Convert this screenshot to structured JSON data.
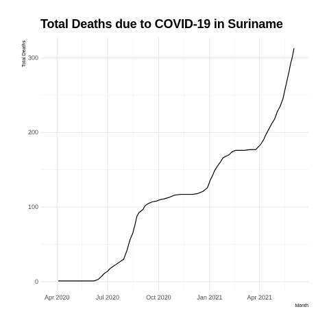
{
  "chart_data": {
    "type": "line",
    "title": "Total Deaths due to COVID-19 in Suriname",
    "xlabel": "Month",
    "ylabel": "Total Deaths",
    "x_ticks": [
      "Apr 2020",
      "Jul 2020",
      "Oct 2020",
      "Jan 2021",
      "Apr 2021"
    ],
    "y_ticks": [
      0,
      100,
      200,
      300
    ],
    "ylim": [
      -12,
      327
    ],
    "xlim": [
      "2020-03-02",
      "2021-06-28"
    ],
    "grid": true,
    "series": [
      {
        "x": [
          "2020-04-03",
          "2020-04-20",
          "2020-05-10",
          "2020-05-25",
          "2020-06-07",
          "2020-06-14",
          "2020-06-20",
          "2020-06-25",
          "2020-07-01",
          "2020-07-06",
          "2020-07-12",
          "2020-07-18",
          "2020-07-24",
          "2020-07-30",
          "2020-08-05",
          "2020-08-10",
          "2020-08-13",
          "2020-08-15",
          "2020-08-19",
          "2020-08-23",
          "2020-08-27",
          "2020-08-31",
          "2020-09-03",
          "2020-09-05",
          "2020-09-07",
          "2020-09-13",
          "2020-09-20",
          "2020-09-27",
          "2020-10-04",
          "2020-10-11",
          "2020-10-20",
          "2020-10-30",
          "2020-11-10",
          "2020-11-20",
          "2020-12-01",
          "2020-12-10",
          "2020-12-20",
          "2020-12-28",
          "2021-01-02",
          "2021-01-06",
          "2021-01-10",
          "2021-01-15",
          "2021-01-20",
          "2021-01-25",
          "2021-01-30",
          "2021-02-05",
          "2021-02-10",
          "2021-02-17",
          "2021-02-25",
          "2021-03-05",
          "2021-03-15",
          "2021-03-25",
          "2021-04-03",
          "2021-04-08",
          "2021-04-13",
          "2021-04-18",
          "2021-04-23",
          "2021-04-28",
          "2021-05-03",
          "2021-05-08",
          "2021-05-13",
          "2021-05-16",
          "2021-05-19",
          "2021-05-22",
          "2021-05-25",
          "2021-05-27",
          "2021-05-29",
          "2021-05-31",
          "2021-06-02"
        ],
        "y": [
          1,
          1,
          1,
          1,
          1,
          3,
          7,
          11,
          14,
          18,
          21,
          24,
          27,
          30,
          42,
          55,
          61,
          64,
          75,
          88,
          93,
          95,
          97,
          100,
          102,
          105,
          107,
          108,
          110,
          111,
          113,
          116,
          117,
          117,
          117,
          118,
          121,
          126,
          136,
          142,
          149,
          155,
          160,
          166,
          168,
          170,
          174,
          176,
          176,
          176,
          177,
          177,
          184,
          190,
          198,
          205,
          212,
          218,
          228,
          235,
          245,
          255,
          265,
          275,
          285,
          293,
          298,
          305,
          313
        ]
      }
    ]
  }
}
